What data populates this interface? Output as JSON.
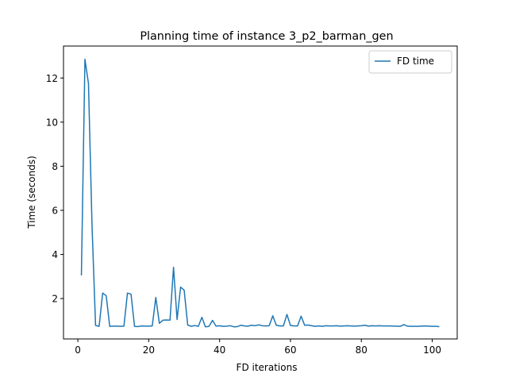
{
  "chart_data": {
    "type": "line",
    "title": "Planning time of instance 3_p2_barman_gen",
    "xlabel": "FD iterations",
    "ylabel": "Time (seconds)",
    "xlim": [
      -4.05,
      107.05
    ],
    "ylim": [
      0.17,
      13.45
    ],
    "xticks": [
      0,
      20,
      40,
      60,
      80,
      100
    ],
    "yticks": [
      2,
      4,
      6,
      8,
      10,
      12
    ],
    "grid": false,
    "legend_position": "top-right",
    "series": [
      {
        "name": "FD time",
        "color": "#1f77b4",
        "x": [
          1,
          2,
          3,
          4,
          5,
          6,
          7,
          8,
          9,
          10,
          11,
          12,
          13,
          14,
          15,
          16,
          17,
          18,
          19,
          20,
          21,
          22,
          23,
          24,
          25,
          26,
          27,
          28,
          29,
          30,
          31,
          32,
          33,
          34,
          35,
          36,
          37,
          38,
          39,
          40,
          41,
          42,
          43,
          44,
          45,
          46,
          47,
          48,
          49,
          50,
          51,
          52,
          53,
          54,
          55,
          56,
          57,
          58,
          59,
          60,
          61,
          62,
          63,
          64,
          65,
          66,
          67,
          68,
          69,
          70,
          71,
          72,
          73,
          74,
          75,
          76,
          77,
          78,
          79,
          80,
          81,
          82,
          83,
          84,
          85,
          86,
          87,
          88,
          89,
          90,
          91,
          92,
          93,
          94,
          95,
          96,
          97,
          98,
          99,
          100,
          101,
          102
        ],
        "y": [
          3.05,
          12.85,
          11.75,
          5.3,
          0.78,
          0.74,
          2.25,
          2.13,
          0.74,
          0.75,
          0.75,
          0.74,
          0.75,
          2.25,
          2.2,
          0.74,
          0.73,
          0.76,
          0.75,
          0.75,
          0.76,
          2.05,
          0.88,
          1.02,
          1.03,
          1.02,
          3.42,
          1.05,
          2.52,
          2.38,
          0.8,
          0.74,
          0.78,
          0.74,
          1.15,
          0.72,
          0.74,
          1.01,
          0.75,
          0.77,
          0.74,
          0.75,
          0.77,
          0.72,
          0.73,
          0.79,
          0.76,
          0.75,
          0.79,
          0.77,
          0.81,
          0.77,
          0.76,
          0.77,
          1.22,
          0.79,
          0.76,
          0.76,
          1.28,
          0.78,
          0.76,
          0.76,
          1.2,
          0.79,
          0.8,
          0.77,
          0.74,
          0.76,
          0.74,
          0.77,
          0.76,
          0.76,
          0.77,
          0.75,
          0.76,
          0.77,
          0.76,
          0.75,
          0.76,
          0.77,
          0.79,
          0.75,
          0.77,
          0.76,
          0.77,
          0.76,
          0.76,
          0.76,
          0.75,
          0.75,
          0.74,
          0.82,
          0.75,
          0.74,
          0.74,
          0.74,
          0.75,
          0.76,
          0.75,
          0.74,
          0.74,
          0.73
        ]
      }
    ]
  }
}
